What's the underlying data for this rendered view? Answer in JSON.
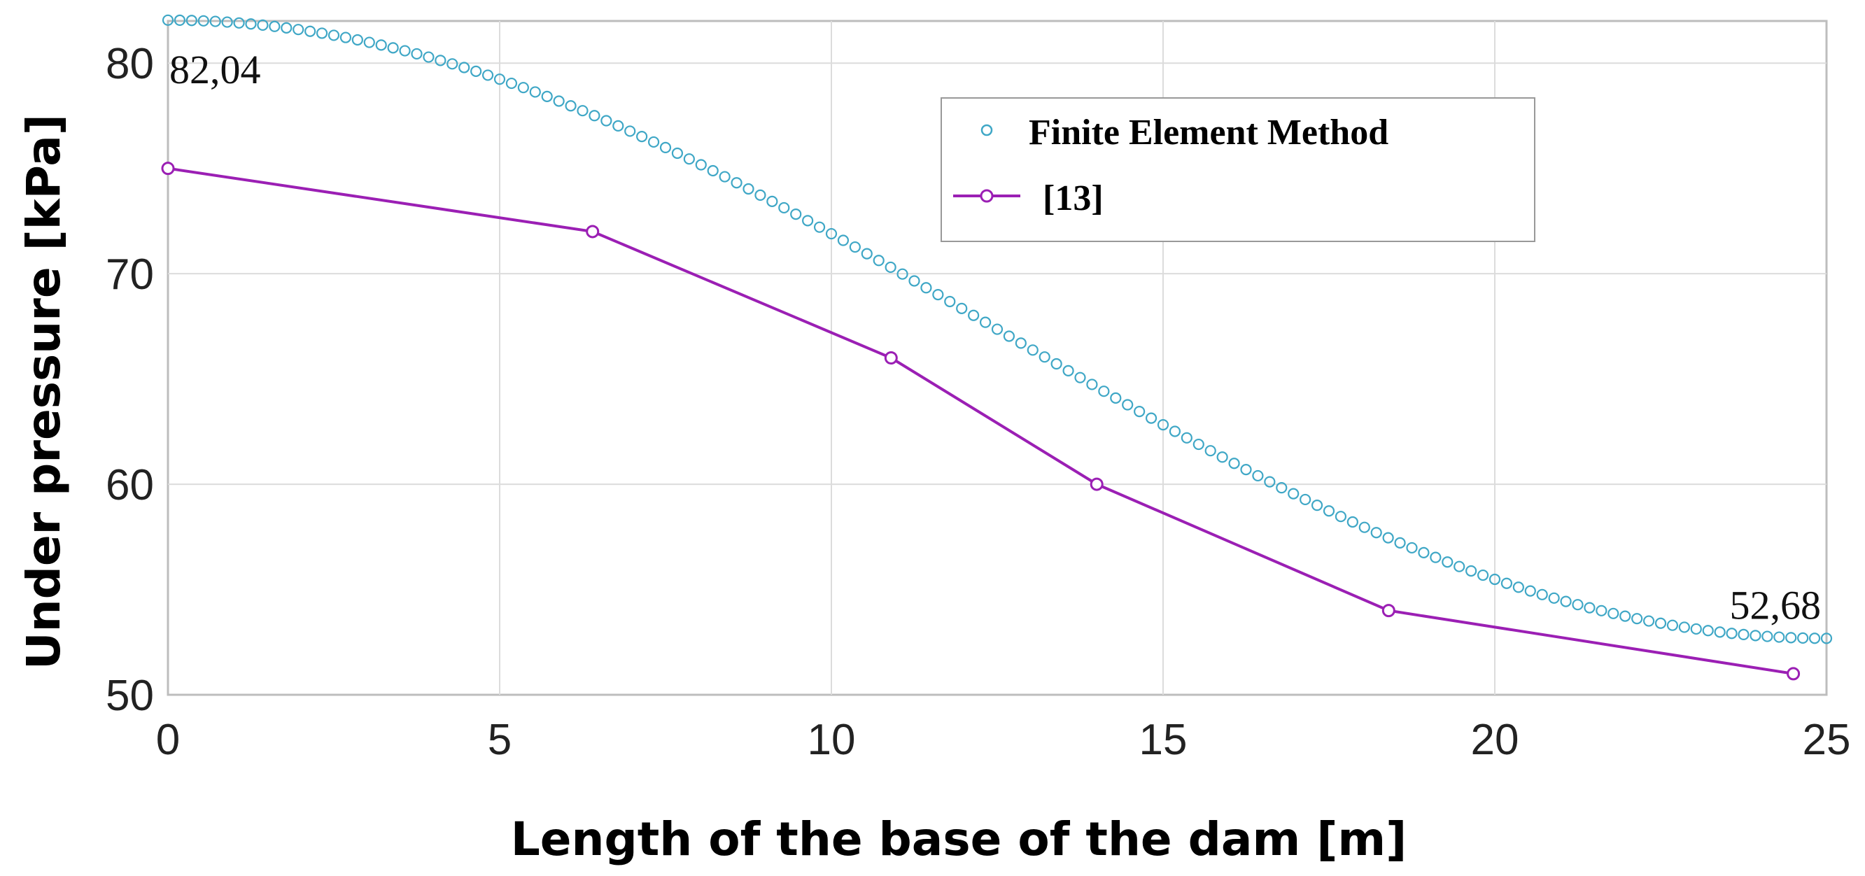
{
  "chart_data": {
    "type": "line",
    "xlabel": "Length of the base of the dam [m]",
    "ylabel": "Under pressure [kPa]",
    "xlim": [
      0,
      25
    ],
    "ylim": [
      50,
      82
    ],
    "xticks": [
      0,
      5,
      10,
      15,
      20,
      25
    ],
    "yticks": [
      50,
      60,
      70,
      80
    ],
    "grid": true,
    "legend_position": "top-right",
    "series": [
      {
        "name": "Finite Element Method",
        "style": "circle-markers",
        "color": "#3fa7c6",
        "x_start": 0,
        "x_end": 25,
        "count": 141,
        "fe_range": [
          82.04,
          52.68
        ]
      },
      {
        "name": "[13]",
        "style": "line-with-circle-markers",
        "color": "#9b1fb4",
        "x": [
          0,
          6.4,
          10.9,
          14,
          18.4,
          24.5
        ],
        "y": [
          75,
          72,
          66,
          60,
          54,
          51
        ]
      }
    ],
    "annotations": [
      {
        "text": "82,04",
        "x": 0,
        "y": 82.04
      },
      {
        "text": "52,68",
        "x": 25,
        "y": 52.68
      }
    ]
  }
}
